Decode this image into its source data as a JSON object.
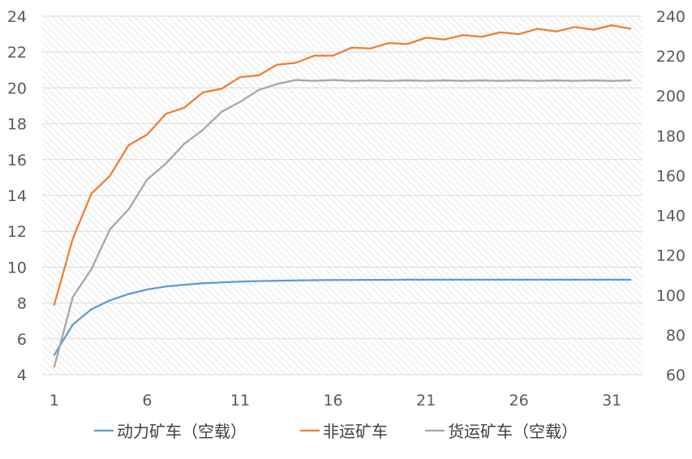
{
  "chart_data": {
    "type": "line",
    "title": "",
    "xlabel": "",
    "ylabel": "",
    "x": [
      1,
      2,
      3,
      4,
      5,
      6,
      7,
      8,
      9,
      10,
      11,
      12,
      13,
      14,
      15,
      16,
      17,
      18,
      19,
      20,
      21,
      22,
      23,
      24,
      25,
      26,
      27,
      28,
      29,
      30,
      31,
      32
    ],
    "x_ticks": [
      1,
      6,
      11,
      16,
      21,
      26,
      31
    ],
    "ylim": [
      4,
      24
    ],
    "y_ticks": [
      4,
      6,
      8,
      10,
      12,
      14,
      16,
      18,
      20,
      22,
      24
    ],
    "y2lim": [
      60,
      240
    ],
    "y2_ticks": [
      60,
      80,
      100,
      120,
      140,
      160,
      180,
      200,
      220,
      240
    ],
    "grid": "horizontal, hatched plot background",
    "legend_position": "bottom",
    "series": [
      {
        "name": "动力矿车（空载）",
        "axis": "left",
        "color": "#5b9bd5",
        "values": [
          5.1,
          6.8,
          7.65,
          8.15,
          8.5,
          8.75,
          8.92,
          9.02,
          9.1,
          9.15,
          9.19,
          9.22,
          9.24,
          9.26,
          9.27,
          9.28,
          9.28,
          9.29,
          9.29,
          9.3,
          9.3,
          9.3,
          9.3,
          9.3,
          9.3,
          9.3,
          9.3,
          9.3,
          9.3,
          9.3,
          9.3,
          9.3
        ]
      },
      {
        "name": "非运矿车",
        "axis": "left",
        "color": "#ed7d31",
        "values": [
          7.9,
          11.6,
          14.1,
          15.1,
          16.8,
          17.4,
          18.55,
          18.9,
          19.75,
          19.95,
          20.6,
          20.7,
          21.3,
          21.4,
          21.8,
          21.8,
          22.25,
          22.2,
          22.5,
          22.45,
          22.8,
          22.7,
          22.95,
          22.85,
          23.1,
          23.0,
          23.3,
          23.15,
          23.4,
          23.25,
          23.5,
          23.3
        ]
      },
      {
        "name": "货运矿车（空载）",
        "axis": "right",
        "color": "#a5a5a5",
        "values": [
          64,
          99,
          113,
          133,
          143,
          158,
          166,
          176,
          183,
          192,
          197,
          203,
          206,
          208,
          207.5,
          208,
          207.5,
          207.8,
          207.5,
          207.8,
          207.5,
          207.8,
          207.5,
          207.8,
          207.5,
          207.8,
          207.5,
          207.8,
          207.5,
          207.8,
          207.5,
          207.8
        ]
      }
    ]
  }
}
